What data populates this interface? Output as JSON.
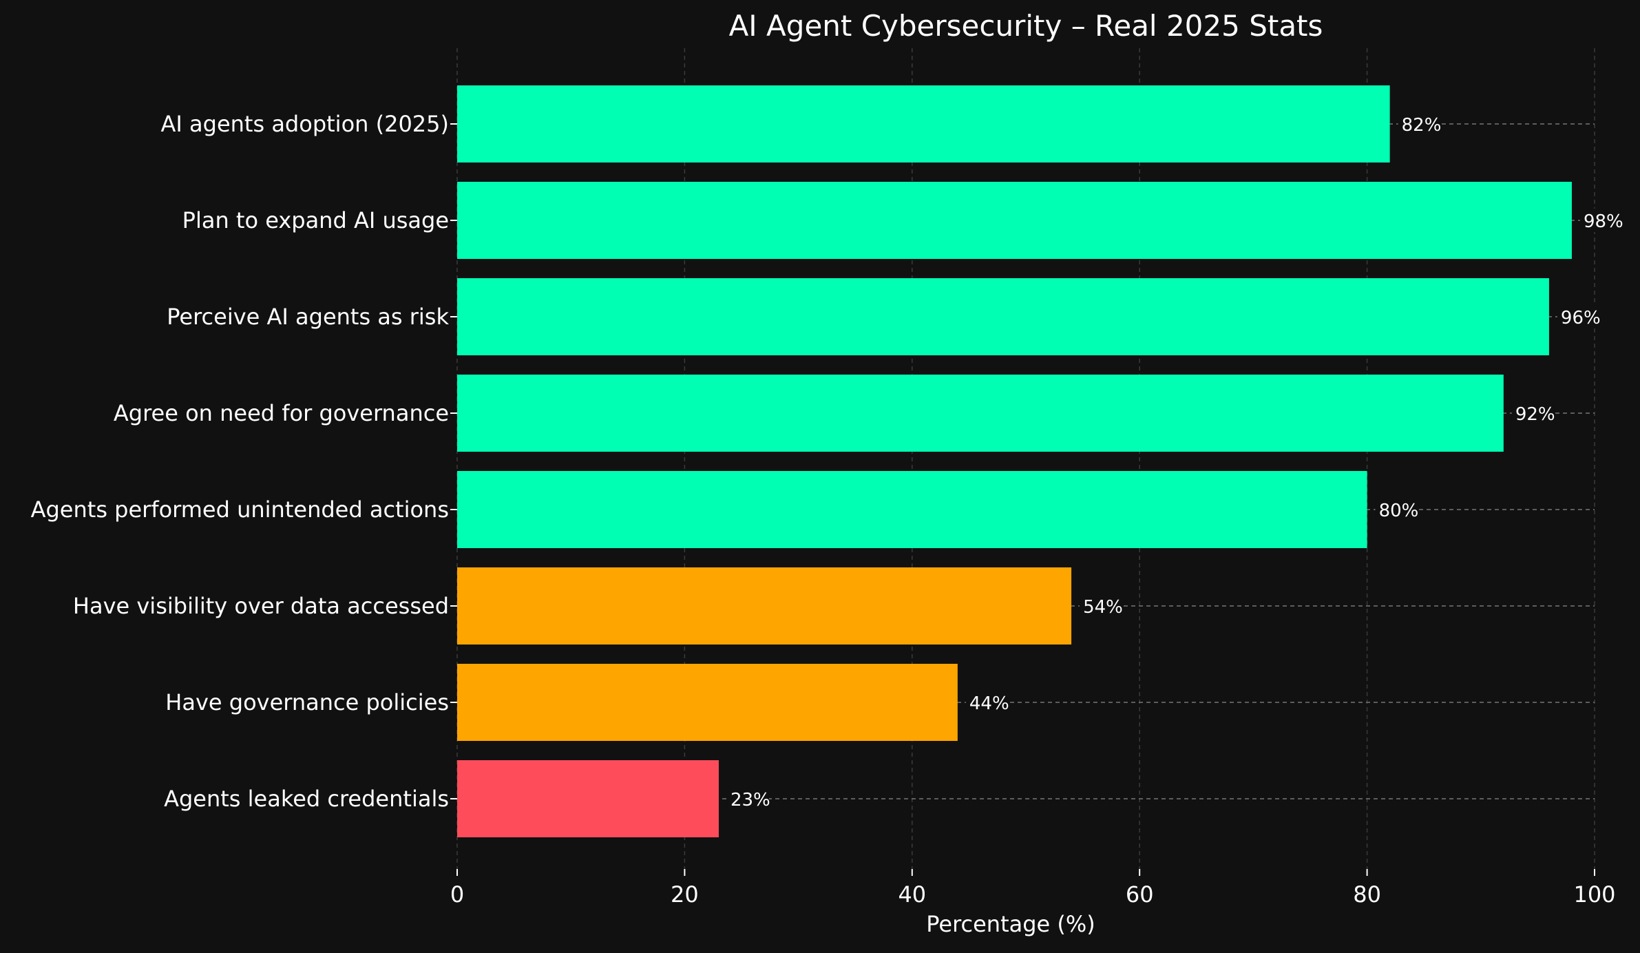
{
  "chart_data": {
    "type": "bar",
    "orientation": "horizontal",
    "title": "AI Agent Cybersecurity – Real 2025 Stats",
    "xlabel": "Percentage (%)",
    "ylabel": "",
    "xlim": [
      0,
      100
    ],
    "xticks": [
      "0",
      "20",
      "40",
      "60",
      "80",
      "100"
    ],
    "grid": true,
    "categories": [
      "AI agents adoption (2025)",
      "Plan to expand AI usage",
      "Perceive AI agents as risk",
      "Agree on need for governance",
      "Agents performed unintended actions",
      "Have visibility over data accessed",
      "Have governance policies",
      "Agents leaked credentials"
    ],
    "values": [
      82,
      98,
      96,
      92,
      80,
      54,
      44,
      23
    ],
    "value_labels": [
      "82%",
      "98%",
      "96%",
      "92%",
      "80%",
      "54%",
      "44%",
      "23%"
    ],
    "bar_colors": [
      "#00ffb3",
      "#00ffb3",
      "#00ffb3",
      "#00ffb3",
      "#00ffb3",
      "#ffa500",
      "#ffa500",
      "#ff4c5b"
    ],
    "colors": {
      "background": "#111111",
      "text": "#ffffff",
      "grid": "#3a3a3a",
      "leader_line": "#777777"
    }
  }
}
